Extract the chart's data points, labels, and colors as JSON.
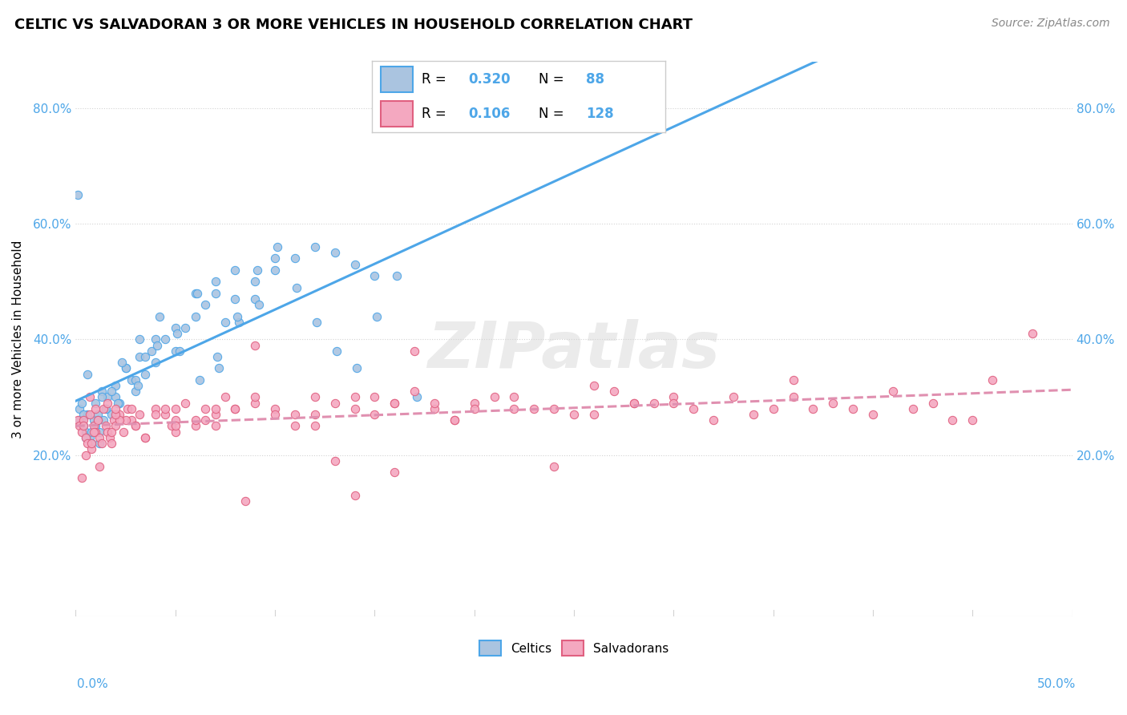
{
  "title": "CELTIC VS SALVADORAN 3 OR MORE VEHICLES IN HOUSEHOLD CORRELATION CHART",
  "source": "Source: ZipAtlas.com",
  "ylabel": "3 or more Vehicles in Household",
  "xlim": [
    0.0,
    50.0
  ],
  "ylim": [
    -8.0,
    88.0
  ],
  "yticks": [
    0,
    20,
    40,
    60,
    80
  ],
  "celtic_R": 0.32,
  "celtic_N": 88,
  "salvadoran_R": 0.106,
  "salvadoran_N": 128,
  "celtic_color": "#aac4e0",
  "salvadoran_color": "#f4a8c0",
  "celtic_line_color": "#4da6e8",
  "salvadoran_line_color": "#e090b0",
  "watermark": "ZIPatlas",
  "celtic_scatter_x": [
    0.2,
    0.3,
    0.4,
    0.5,
    0.6,
    0.7,
    0.8,
    0.9,
    1.0,
    1.1,
    1.2,
    1.3,
    1.4,
    1.5,
    1.6,
    1.8,
    2.0,
    2.2,
    2.5,
    2.8,
    3.0,
    3.2,
    3.5,
    3.8,
    4.0,
    4.5,
    5.0,
    5.5,
    6.0,
    6.5,
    7.0,
    7.5,
    8.0,
    9.0,
    10.0,
    11.0,
    12.0,
    13.0,
    14.0,
    15.0,
    0.1,
    0.2,
    0.3,
    0.5,
    0.8,
    1.0,
    1.2,
    1.5,
    2.0,
    2.5,
    3.0,
    3.5,
    4.0,
    5.0,
    6.0,
    7.0,
    8.0,
    9.0,
    10.0,
    0.4,
    0.6,
    1.1,
    1.8,
    2.3,
    3.2,
    4.2,
    5.2,
    6.2,
    7.2,
    8.2,
    9.2,
    1.3,
    2.1,
    3.1,
    4.1,
    5.1,
    6.1,
    7.1,
    8.1,
    9.1,
    10.1,
    11.1,
    12.1,
    13.1,
    14.1,
    15.1,
    16.1,
    17.1
  ],
  "celtic_scatter_y": [
    28,
    26,
    25,
    24,
    27,
    23,
    22,
    26,
    29,
    27,
    24,
    31,
    26,
    28,
    30,
    27,
    32,
    29,
    35,
    33,
    31,
    37,
    34,
    38,
    36,
    40,
    38,
    42,
    44,
    46,
    48,
    43,
    47,
    50,
    52,
    54,
    56,
    55,
    53,
    51,
    65,
    26,
    29,
    23,
    24,
    25,
    22,
    28,
    30,
    35,
    33,
    37,
    40,
    42,
    48,
    50,
    52,
    47,
    54,
    27,
    34,
    26,
    31,
    36,
    40,
    44,
    38,
    33,
    35,
    43,
    46,
    30,
    29,
    32,
    39,
    41,
    48,
    37,
    44,
    52,
    56,
    49,
    43,
    38,
    35,
    44,
    51,
    30
  ],
  "salvadoran_scatter_x": [
    0.1,
    0.2,
    0.3,
    0.4,
    0.5,
    0.6,
    0.7,
    0.8,
    0.9,
    1.0,
    1.1,
    1.2,
    1.3,
    1.4,
    1.5,
    1.6,
    1.7,
    1.8,
    1.9,
    2.0,
    2.2,
    2.4,
    2.6,
    2.8,
    3.0,
    3.5,
    4.0,
    4.5,
    5.0,
    5.5,
    6.0,
    6.5,
    7.0,
    7.5,
    8.0,
    9.0,
    10.0,
    11.0,
    12.0,
    13.0,
    14.0,
    15.0,
    16.0,
    17.0,
    18.0,
    19.0,
    20.0,
    22.0,
    24.0,
    26.0,
    28.0,
    30.0,
    32.0,
    35.0,
    38.0,
    40.0,
    42.0,
    45.0,
    0.3,
    0.5,
    0.8,
    1.2,
    1.8,
    2.5,
    3.5,
    5.0,
    7.0,
    10.0,
    14.0,
    18.0,
    22.0,
    27.0,
    33.0,
    37.0,
    43.0,
    0.4,
    0.9,
    1.6,
    2.2,
    3.2,
    4.5,
    6.5,
    9.0,
    12.0,
    16.0,
    20.0,
    25.0,
    30.0,
    36.0,
    1.0,
    2.0,
    3.0,
    4.0,
    5.0,
    6.0,
    8.0,
    11.0,
    15.0,
    19.0,
    23.0,
    28.0,
    34.0,
    39.0,
    44.0,
    7.0,
    12.0,
    17.0,
    21.0,
    26.0,
    31.0,
    41.0,
    46.0,
    2.8,
    4.8,
    8.5,
    13.0,
    24.0,
    29.0,
    16.0,
    48.0,
    36.0,
    14.0,
    9.0,
    5.0,
    2.0,
    0.7
  ],
  "salvadoran_scatter_y": [
    26,
    25,
    24,
    26,
    23,
    22,
    27,
    21,
    25,
    24,
    26,
    23,
    22,
    28,
    25,
    24,
    23,
    22,
    26,
    25,
    27,
    24,
    28,
    26,
    25,
    23,
    28,
    27,
    26,
    29,
    25,
    28,
    27,
    30,
    28,
    29,
    28,
    27,
    30,
    29,
    28,
    30,
    29,
    31,
    28,
    26,
    29,
    30,
    28,
    27,
    29,
    30,
    26,
    28,
    29,
    27,
    28,
    26,
    16,
    20,
    22,
    18,
    24,
    26,
    23,
    28,
    25,
    27,
    30,
    29,
    28,
    31,
    30,
    28,
    29,
    25,
    24,
    29,
    26,
    27,
    28,
    26,
    30,
    27,
    29,
    28,
    27,
    29,
    30,
    28,
    27,
    25,
    27,
    24,
    26,
    28,
    25,
    27,
    26,
    28,
    29,
    27,
    28,
    26,
    28,
    25,
    38,
    30,
    32,
    28,
    31,
    33,
    28,
    25,
    12,
    19,
    18,
    29,
    17,
    41,
    33,
    13,
    39,
    25,
    28,
    30,
    26,
    27
  ]
}
